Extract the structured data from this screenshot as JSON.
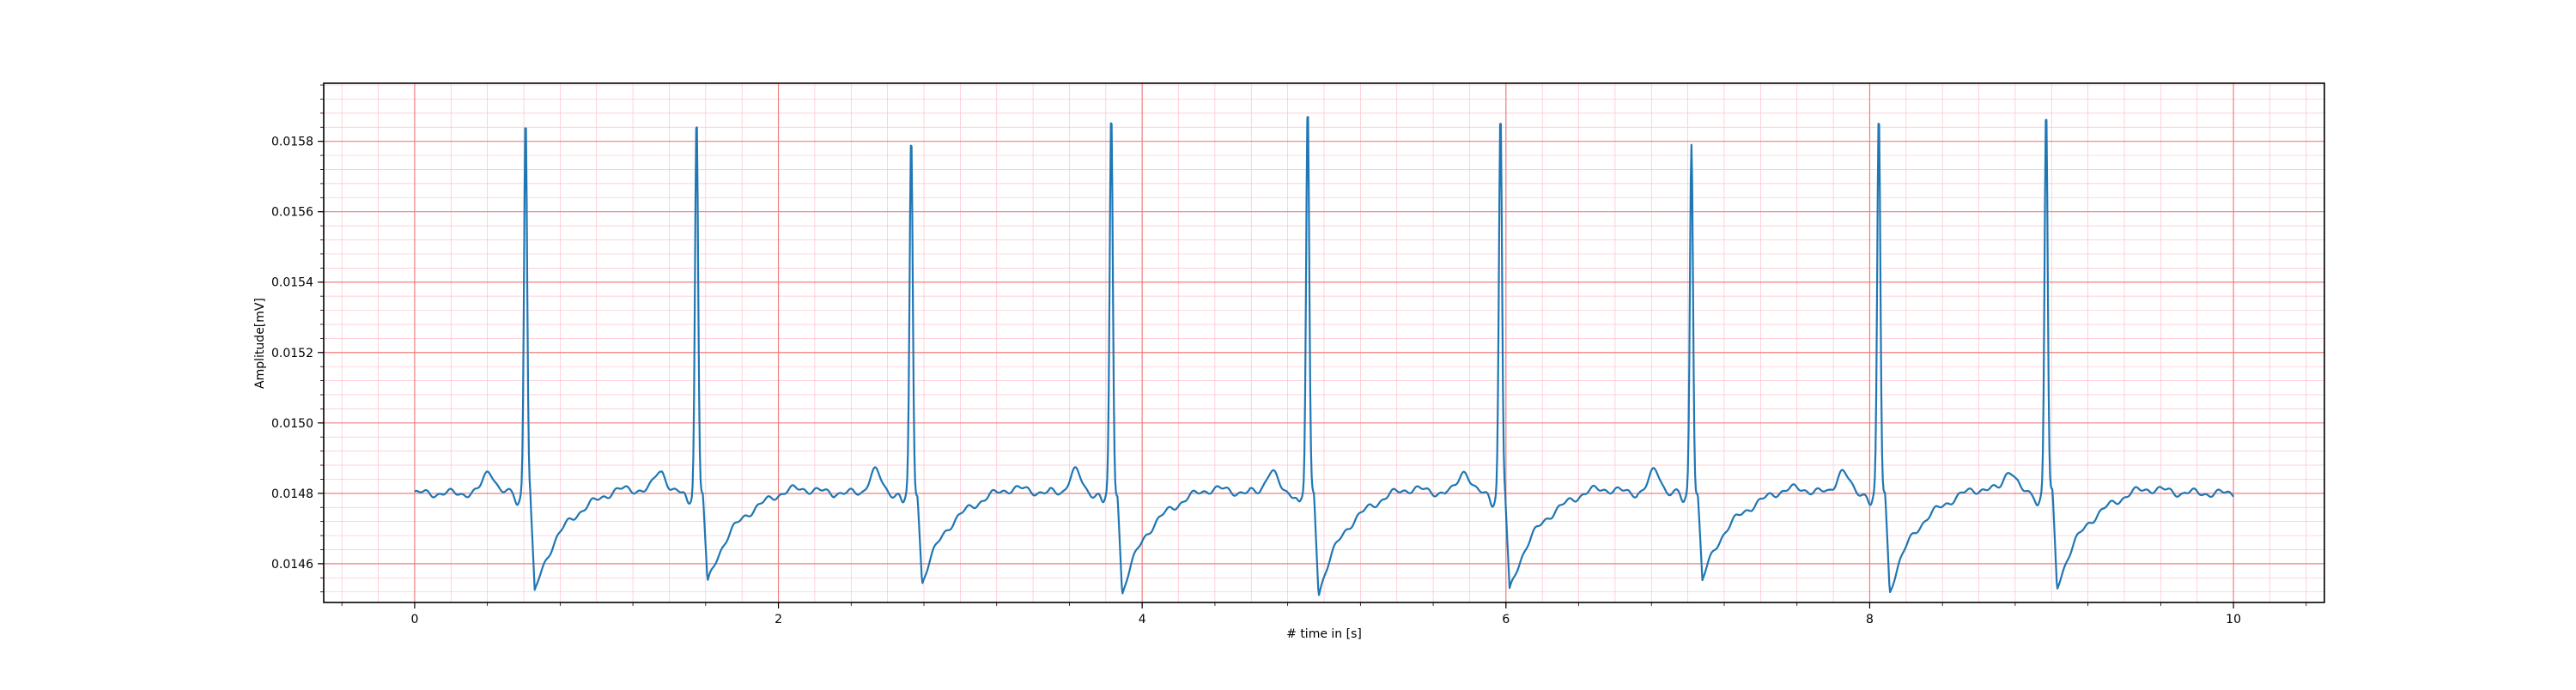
{
  "chart_data": {
    "type": "line",
    "title": "",
    "xlabel": "# time in [s]",
    "ylabel": "Amplitude[mV]",
    "xlim": [
      -0.5,
      10.5
    ],
    "ylim": [
      0.01449,
      0.015965
    ],
    "x_ticks": [
      0,
      2,
      4,
      6,
      8,
      10
    ],
    "x_tick_labels": [
      "0",
      "2",
      "4",
      "6",
      "8",
      "10"
    ],
    "y_ticks": [
      0.0146,
      0.0148,
      0.015,
      0.0152,
      0.0154,
      0.0156,
      0.0158
    ],
    "y_tick_labels": [
      "0.0146",
      "0.0148",
      "0.0150",
      "0.0152",
      "0.0154",
      "0.0156",
      "0.0158"
    ],
    "grid": {
      "major": true,
      "minor": true,
      "major_color": "#f08080",
      "minor_color": "#ffc0cb"
    },
    "series": [
      {
        "name": "",
        "color": "#1f77b4",
        "baseline": 0.0148,
        "r_peaks": [
          {
            "x": 0.61,
            "y": 0.015875
          },
          {
            "x": 1.55,
            "y": 0.01587
          },
          {
            "x": 2.73,
            "y": 0.015805
          },
          {
            "x": 3.83,
            "y": 0.01587
          },
          {
            "x": 4.91,
            "y": 0.01589
          },
          {
            "x": 5.97,
            "y": 0.015875
          },
          {
            "x": 7.02,
            "y": 0.0158
          },
          {
            "x": 8.05,
            "y": 0.01587
          },
          {
            "x": 8.97,
            "y": 0.01589
          }
        ],
        "s_troughs": [
          {
            "x": 0.66,
            "y": 0.014515
          },
          {
            "x": 1.61,
            "y": 0.01454
          },
          {
            "x": 2.79,
            "y": 0.014545
          },
          {
            "x": 3.89,
            "y": 0.014515
          },
          {
            "x": 4.97,
            "y": 0.014515
          },
          {
            "x": 6.02,
            "y": 0.01452
          },
          {
            "x": 7.08,
            "y": 0.01455
          },
          {
            "x": 8.11,
            "y": 0.01452
          },
          {
            "x": 9.03,
            "y": 0.01453
          }
        ],
        "x_start": 0.0,
        "x_end": 10.0
      }
    ]
  }
}
